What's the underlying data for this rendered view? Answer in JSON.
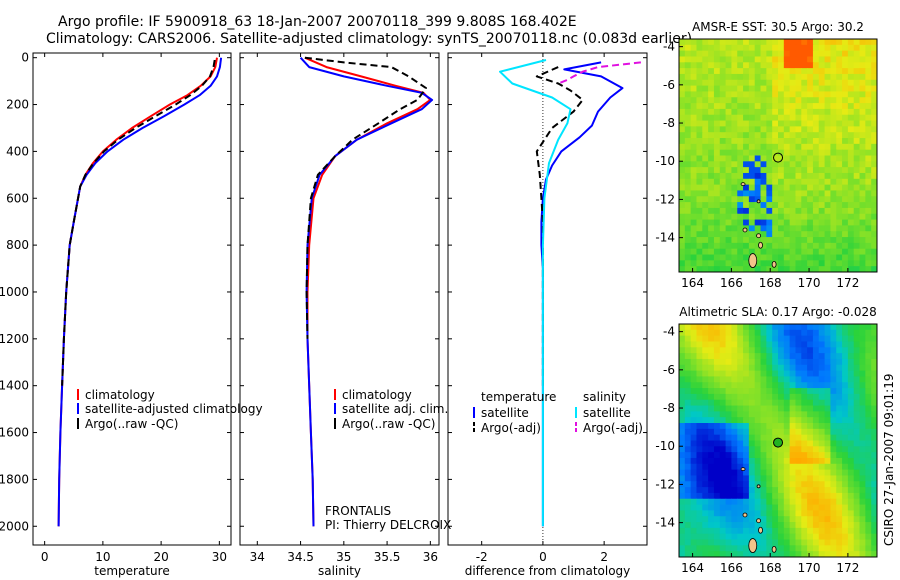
{
  "header": {
    "title_line1": "Argo profile: IF 5900918_63 18-Jan-2007 20070118_399 9.808S 168.402E",
    "title_line2": "Climatology: CARS2006. Satellite-adjusted climatology: synTS_20070118.nc (0.083d earlier)"
  },
  "colors": {
    "climatology": "#ff0000",
    "satellite": "#0000ff",
    "argo": "#000000",
    "salinity_satellite": "#00e5ff",
    "salinity_argo": "#e010e0"
  },
  "chart_data": [
    {
      "id": "temperature",
      "type": "line",
      "xlabel": "temperature",
      "ylabel": "",
      "xlim": [
        -2,
        32
      ],
      "ylim": [
        2080,
        -20
      ],
      "xticks": [
        0,
        10,
        20,
        30
      ],
      "yticks": [
        0,
        200,
        400,
        600,
        800,
        1000,
        1200,
        1400,
        1600,
        1800,
        2000
      ],
      "legend": {
        "position": "lower-center",
        "entries": [
          "climatology",
          "satellite-adjusted climatology",
          "Argo(..raw -QC)"
        ]
      },
      "series": [
        {
          "name": "climatology",
          "color": "#ff0000",
          "style": "solid",
          "x": [
            29.6,
            29.3,
            28.5,
            26.8,
            24.5,
            21.5,
            18.2,
            15.0,
            12.3,
            10.0,
            8.3,
            7.0,
            6.1,
            5.0,
            4.3,
            3.7,
            3.3,
            3.0,
            2.7,
            2.5,
            2.4
          ],
          "y": [
            0,
            40,
            80,
            120,
            160,
            200,
            250,
            300,
            350,
            400,
            450,
            500,
            550,
            700,
            800,
            1000,
            1200,
            1400,
            1600,
            1800,
            2000
          ]
        },
        {
          "name": "satellite-adjusted climatology",
          "color": "#0000ff",
          "style": "solid",
          "x": [
            30.3,
            30.1,
            29.6,
            28.5,
            26.6,
            24.0,
            20.5,
            16.8,
            13.5,
            10.8,
            8.7,
            7.2,
            6.1,
            5.0,
            4.3,
            3.7,
            3.3,
            3.0,
            2.7,
            2.5,
            2.4
          ],
          "y": [
            0,
            40,
            80,
            120,
            160,
            200,
            250,
            300,
            350,
            400,
            450,
            500,
            550,
            700,
            800,
            1000,
            1200,
            1400,
            1600,
            1800,
            2000
          ]
        },
        {
          "name": "Argo(..raw -QC)",
          "color": "#000000",
          "style": "dashed",
          "x": [
            29.2,
            29.0,
            28.4,
            27.0,
            25.0,
            22.5,
            19.0,
            15.6,
            12.6,
            10.2,
            8.4,
            7.0,
            6.1,
            5.0,
            4.3,
            3.7,
            3.3,
            3.0
          ],
          "y": [
            10,
            40,
            80,
            120,
            160,
            200,
            250,
            300,
            350,
            400,
            450,
            500,
            550,
            700,
            800,
            1000,
            1200,
            1400
          ]
        }
      ]
    },
    {
      "id": "salinity",
      "type": "line",
      "xlabel": "salinity",
      "ylabel": "",
      "xlim": [
        33.8,
        36.1
      ],
      "ylim": [
        2080,
        -20
      ],
      "xticks": [
        34,
        34.5,
        35,
        35.5,
        36
      ],
      "xticklabels": [
        "34",
        "34.5",
        "35",
        "35.5",
        "36"
      ],
      "yticks": [
        0,
        200,
        400,
        600,
        800,
        1000,
        1200,
        1400,
        1600,
        1800,
        2000
      ],
      "legend": {
        "position": "lower-center",
        "entries": [
          "climatology",
          "satellite adj. clim.",
          "Argo(..raw -QC)"
        ]
      },
      "annotation": [
        "FRONTALIS",
        "PI: Thierry DELCROIX"
      ],
      "series": [
        {
          "name": "climatology",
          "color": "#ff0000",
          "style": "solid",
          "x": [
            34.55,
            34.8,
            35.2,
            35.6,
            35.92,
            36.0,
            35.85,
            35.5,
            35.15,
            34.9,
            34.75,
            34.65,
            34.6,
            34.58,
            34.58,
            34.6,
            34.62,
            34.64,
            34.65
          ],
          "y": [
            0,
            40,
            80,
            120,
            150,
            180,
            220,
            280,
            350,
            420,
            500,
            600,
            800,
            1000,
            1200,
            1400,
            1600,
            1800,
            2000
          ]
        },
        {
          "name": "satellite adj. clim.",
          "color": "#0000ff",
          "style": "solid",
          "x": [
            34.5,
            34.6,
            35.0,
            35.5,
            35.9,
            36.02,
            35.9,
            35.55,
            35.15,
            34.9,
            34.72,
            34.63,
            34.58,
            34.57,
            34.58,
            34.6,
            34.62,
            34.64,
            34.65
          ],
          "y": [
            0,
            40,
            80,
            120,
            150,
            180,
            220,
            280,
            350,
            420,
            500,
            600,
            800,
            1000,
            1200,
            1400,
            1600,
            1800,
            2000
          ]
        },
        {
          "name": "Argo(..raw -QC)",
          "color": "#000000",
          "style": "dashed",
          "x": [
            34.55,
            35.0,
            35.55,
            35.75,
            35.95,
            35.85,
            35.65,
            35.4,
            35.1,
            34.9,
            34.7,
            34.62,
            34.58,
            34.57,
            34.58
          ],
          "y": [
            0,
            20,
            40,
            80,
            130,
            180,
            220,
            280,
            350,
            420,
            500,
            600,
            800,
            1000,
            1200
          ]
        }
      ]
    },
    {
      "id": "difference",
      "type": "line",
      "xlabel": "difference from climatology",
      "ylabel": "",
      "xlim": [
        -3.1,
        3.4
      ],
      "ylim": [
        2080,
        -20
      ],
      "xticks": [
        -2,
        0,
        2
      ],
      "yticks": [
        0,
        200,
        400,
        600,
        800,
        1000,
        1200,
        1400,
        1600,
        1800,
        2000
      ],
      "legend": {
        "position": "lower-center",
        "headers": [
          "temperature",
          "salinity"
        ],
        "entries": [
          "satellite",
          "Argo(-adj)",
          "satellite",
          "Argo(-adj)"
        ]
      },
      "series": [
        {
          "name": "satellite",
          "group": "temperature",
          "color": "#0000ff",
          "style": "solid",
          "x": [
            1.9,
            0.7,
            1.9,
            2.6,
            2.2,
            1.8,
            1.6,
            1.2,
            0.6,
            0.3,
            0.1,
            0.0,
            -0.05,
            -0.05,
            0.0,
            0.0,
            0.0,
            0.0,
            0.0,
            0.0
          ],
          "y": [
            20,
            50,
            80,
            130,
            170,
            230,
            290,
            340,
            400,
            460,
            520,
            600,
            700,
            800,
            900,
            1000,
            1200,
            1400,
            1600,
            2000
          ]
        },
        {
          "name": "Argo(-adj)",
          "group": "temperature",
          "color": "#000000",
          "style": "dashed",
          "x": [
            0.5,
            -0.2,
            0.5,
            0.9,
            1.3,
            1.0,
            0.3,
            -0.2,
            -0.1,
            -0.05,
            0.0,
            0.0,
            0.0
          ],
          "y": [
            40,
            80,
            110,
            140,
            180,
            230,
            300,
            400,
            500,
            600,
            700,
            900,
            1400
          ]
        },
        {
          "name": "satellite",
          "group": "salinity",
          "color": "#00e5ff",
          "style": "solid",
          "x": [
            0.1,
            -1.4,
            -1.0,
            0.3,
            0.9,
            0.8,
            0.5,
            0.2,
            0.05,
            0.0,
            0.0,
            0.0,
            0.0
          ],
          "y": [
            10,
            60,
            110,
            170,
            220,
            280,
            350,
            450,
            600,
            800,
            1200,
            1600,
            2000
          ]
        },
        {
          "name": "Argo(-adj)",
          "group": "salinity",
          "color": "#e010e0",
          "style": "dashed",
          "x": [
            3.2,
            1.8,
            1.3,
            1.0,
            0.8,
            0.5
          ],
          "y": [
            20,
            40,
            60,
            80,
            95,
            110
          ]
        }
      ]
    },
    {
      "id": "sst_map",
      "type": "heatmap",
      "title": "AMSR-E SST: 30.5 Argo: 30.2",
      "xlim": [
        163.3,
        173.5
      ],
      "ylim": [
        -15.8,
        -3.6
      ],
      "xticks": [
        164,
        166,
        168,
        170,
        172
      ],
      "yticks": [
        -4,
        -6,
        -8,
        -10,
        -12,
        -14
      ],
      "marker": {
        "x": 168.402,
        "y": -9.808,
        "style": "open-circle"
      }
    },
    {
      "id": "sla_map",
      "type": "heatmap",
      "title": "Altimetric SLA: 0.17 Argo: -0.028",
      "xlim": [
        163.3,
        173.5
      ],
      "ylim": [
        -15.8,
        -3.6
      ],
      "xticks": [
        164,
        166,
        168,
        170,
        172
      ],
      "yticks": [
        -4,
        -6,
        -8,
        -10,
        -12,
        -14
      ],
      "marker": {
        "x": 168.402,
        "y": -9.808,
        "style": "filled-circle"
      }
    }
  ],
  "footer": {
    "stamp": "CSIRO 27-Jan-2007 09:01:19"
  }
}
